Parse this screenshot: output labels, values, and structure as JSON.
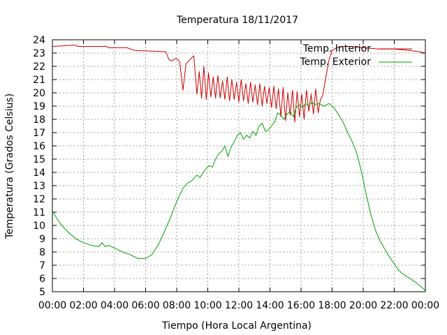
{
  "chart_data": {
    "type": "line",
    "title": "Temperatura 18/11/2017",
    "xlabel": "Tiempo (Hora Local Argentina)",
    "ylabel": "Temperatura (Grados Celsius)",
    "xlim": [
      0,
      24
    ],
    "ylim": [
      5,
      24
    ],
    "x_tick_labels": [
      "00:00",
      "02:00",
      "04:00",
      "06:00",
      "08:00",
      "10:00",
      "12:00",
      "14:00",
      "16:00",
      "18:00",
      "20:00",
      "22:00",
      "00:00"
    ],
    "y_tick_labels": [
      "5",
      "6",
      "7",
      "8",
      "9",
      "10",
      "11",
      "12",
      "13",
      "14",
      "15",
      "16",
      "17",
      "18",
      "19",
      "20",
      "21",
      "22",
      "23",
      "24"
    ],
    "grid": true,
    "legend_position": "top-right",
    "series": [
      {
        "name": "Temp. Interior",
        "color": "#cc0000",
        "x": [
          0,
          1.5,
          1.6,
          3.5,
          3.6,
          4.8,
          5.3,
          7.3,
          7.5,
          7.7,
          7.9,
          8.1,
          8.2,
          8.4,
          8.6,
          9.1,
          9.3,
          9.45,
          9.6,
          9.75,
          9.9,
          10.05,
          10.2,
          10.35,
          10.5,
          10.65,
          10.8,
          10.95,
          11.1,
          11.25,
          11.4,
          11.55,
          11.7,
          11.85,
          12.0,
          12.15,
          12.3,
          12.45,
          12.6,
          12.75,
          12.9,
          13.05,
          13.2,
          13.35,
          13.5,
          13.65,
          13.8,
          13.95,
          14.1,
          14.25,
          14.4,
          14.55,
          14.7,
          14.85,
          15.0,
          15.15,
          15.3,
          15.45,
          15.6,
          15.75,
          15.9,
          16.05,
          16.2,
          16.35,
          16.5,
          16.65,
          16.8,
          16.95,
          17.1,
          17.25,
          17.4,
          17.6,
          17.8,
          18.0,
          18.3,
          18.7,
          19.2,
          20.0,
          21.0,
          22.0,
          23.0,
          23.6,
          24.0
        ],
        "values": [
          23.5,
          23.6,
          23.5,
          23.5,
          23.4,
          23.4,
          23.2,
          23.1,
          22.5,
          22.4,
          22.6,
          22.5,
          22.3,
          20.2,
          22.2,
          22.8,
          19.9,
          21.6,
          19.6,
          22.0,
          19.5,
          21.5,
          19.7,
          21.2,
          19.6,
          21.3,
          19.6,
          20.9,
          19.5,
          21.2,
          19.4,
          21.0,
          19.5,
          20.8,
          19.3,
          21.0,
          19.4,
          20.7,
          19.2,
          20.8,
          19.3,
          20.6,
          19.1,
          20.7,
          19.0,
          20.5,
          19.2,
          20.4,
          18.9,
          20.5,
          18.8,
          20.3,
          18.2,
          20.4,
          17.9,
          20.0,
          18.3,
          20.2,
          17.8,
          20.1,
          18.2,
          19.9,
          18.0,
          20.2,
          18.6,
          19.9,
          18.4,
          20.3,
          18.5,
          19.5,
          19.8,
          21.2,
          22.5,
          23.2,
          23.4,
          23.5,
          23.5,
          23.4,
          23.3,
          23.3,
          23.2,
          23.1,
          23.0
        ]
      },
      {
        "name": "Temp. Exterior",
        "color": "#00a000",
        "x": [
          0,
          0.3,
          0.6,
          1.0,
          1.5,
          2.0,
          2.5,
          3.0,
          3.2,
          3.4,
          3.6,
          4.0,
          4.5,
          5.0,
          5.5,
          6.0,
          6.4,
          6.8,
          7.2,
          7.6,
          8.0,
          8.4,
          8.7,
          9.0,
          9.3,
          9.5,
          9.7,
          9.9,
          10.1,
          10.3,
          10.5,
          10.7,
          10.9,
          11.1,
          11.3,
          11.5,
          11.7,
          11.9,
          12.1,
          12.3,
          12.5,
          12.7,
          12.9,
          13.1,
          13.3,
          13.5,
          13.7,
          13.9,
          14.1,
          14.3,
          14.5,
          14.7,
          14.9,
          15.1,
          15.3,
          15.5,
          15.7,
          15.9,
          16.1,
          16.3,
          16.5,
          16.7,
          16.9,
          17.1,
          17.3,
          17.5,
          17.8,
          18.1,
          18.4,
          18.7,
          19.0,
          19.3,
          19.6,
          19.9,
          20.2,
          20.5,
          20.8,
          21.1,
          21.4,
          21.7,
          22.0,
          22.3,
          22.6,
          23.0,
          23.4,
          23.7,
          24.0
        ],
        "values": [
          11.1,
          10.5,
          10.0,
          9.5,
          9.0,
          8.7,
          8.5,
          8.4,
          8.7,
          8.4,
          8.5,
          8.3,
          8.0,
          7.8,
          7.5,
          7.5,
          7.8,
          8.5,
          9.5,
          10.6,
          11.8,
          12.8,
          13.2,
          13.4,
          13.8,
          13.6,
          14.0,
          14.3,
          14.5,
          14.4,
          15.0,
          15.4,
          15.6,
          16.0,
          15.2,
          15.9,
          16.3,
          16.8,
          17.0,
          16.5,
          16.8,
          16.6,
          17.1,
          16.8,
          17.5,
          17.7,
          17.1,
          17.2,
          17.5,
          17.8,
          18.5,
          18.3,
          18.0,
          18.4,
          18.6,
          18.2,
          18.9,
          19.1,
          18.9,
          19.2,
          19.0,
          19.3,
          19.1,
          19.2,
          19.1,
          19.0,
          19.2,
          18.9,
          18.4,
          17.8,
          17.0,
          16.3,
          15.4,
          14.0,
          12.3,
          10.8,
          9.6,
          8.8,
          8.2,
          7.6,
          7.1,
          6.6,
          6.3,
          6.0,
          5.7,
          5.4,
          5.1
        ]
      }
    ]
  }
}
